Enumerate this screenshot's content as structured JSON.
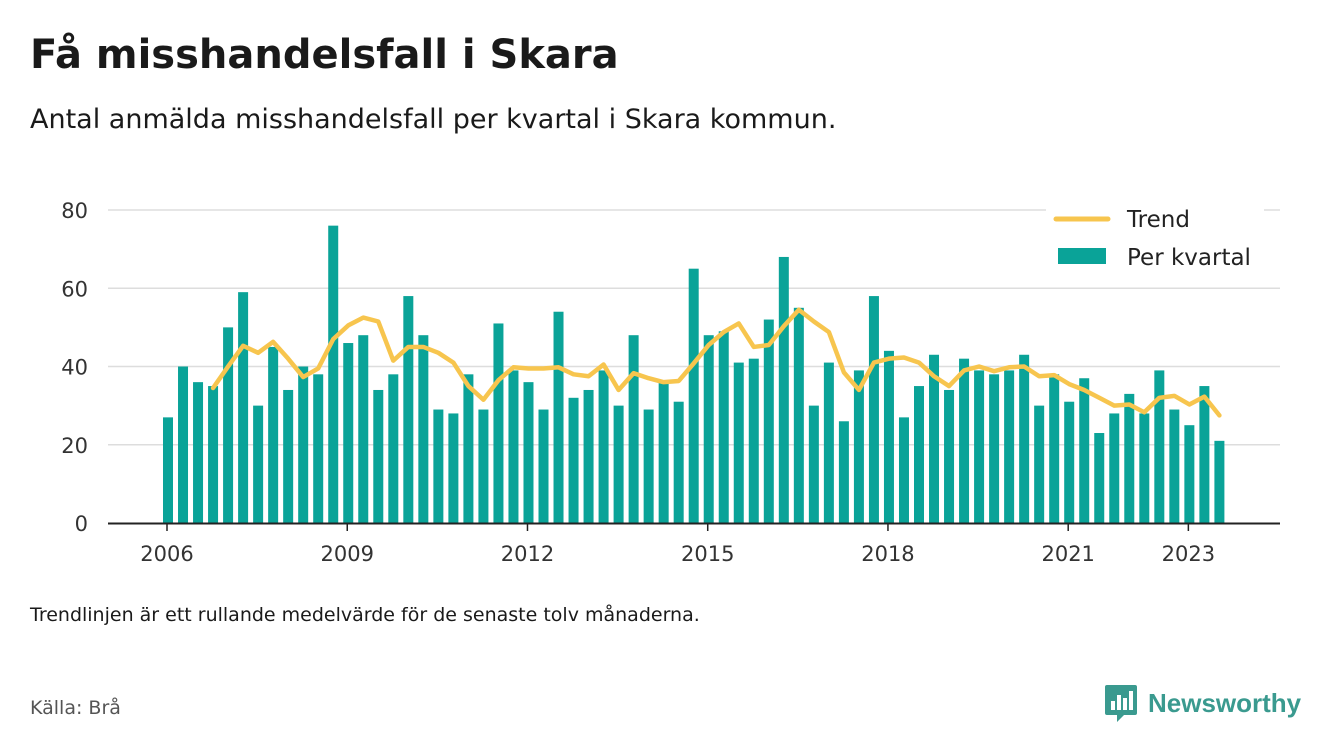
{
  "header": {
    "title": "Få misshandelsfall i Skara",
    "subtitle": "Antal anmälda misshandelsfall per kvartal i Skara kommun."
  },
  "footer": {
    "note": "Trendlinjen är ett rullande medelvärde för de senaste tolv månaderna.",
    "source": "Källa: Brå",
    "brand": "Newsworthy"
  },
  "colors": {
    "bar": "#0aa398",
    "trend": "#f7c54e",
    "grid": "#dddddd",
    "axis": "#222222",
    "brand": "#3a9a8f"
  },
  "icons": {
    "brand_logo": "bar-chart-speech-bubble-icon"
  },
  "chart_data": {
    "type": "bar",
    "x_unit": "quarter",
    "start_year": 2006,
    "start_quarter": 1,
    "ylim": [
      0,
      80
    ],
    "yticks": [
      0,
      20,
      40,
      60,
      80
    ],
    "xticks": [
      "2006",
      "2009",
      "2012",
      "2015",
      "2018",
      "2021",
      "2023"
    ],
    "grid": true,
    "legend_position": "top-right",
    "series": [
      {
        "name": "Per kvartal",
        "type": "bar",
        "values": [
          27,
          40,
          36,
          35,
          50,
          59,
          30,
          45,
          34,
          40,
          38,
          76,
          46,
          48,
          34,
          38,
          58,
          48,
          29,
          28,
          38,
          29,
          51,
          39,
          36,
          29,
          54,
          32,
          34,
          39,
          30,
          48,
          29,
          36,
          31,
          65,
          48,
          49,
          41,
          42,
          52,
          68,
          55,
          30,
          41,
          26,
          39,
          58,
          44,
          27,
          35,
          43,
          34,
          42,
          39,
          38,
          39,
          43,
          30,
          38,
          31,
          37,
          23,
          28,
          33,
          28,
          39,
          29,
          25,
          35,
          21
        ]
      },
      {
        "name": "Trend",
        "type": "line",
        "start_index": 3,
        "values": [
          34.5,
          40,
          45.3,
          43.5,
          46.3,
          42,
          37.3,
          39.5,
          47,
          50.5,
          52.5,
          51.5,
          41.5,
          45,
          45,
          43.5,
          41,
          35,
          31.5,
          36.5,
          39.8,
          39.5,
          39.5,
          39.8,
          38,
          37.5,
          40.5,
          34,
          38.3,
          37,
          36,
          36.3,
          40.8,
          45.5,
          48.8,
          51,
          45,
          45.5,
          50.3,
          54.5,
          51.5,
          48.8,
          38.5,
          34,
          41,
          42,
          42.3,
          41,
          37.5,
          35,
          39,
          40,
          38.8,
          39.8,
          40,
          37.5,
          37.8,
          35.5,
          34,
          32,
          30,
          30.3,
          28.3,
          32,
          32.5,
          30.3,
          32.3,
          27.5
        ]
      }
    ]
  }
}
